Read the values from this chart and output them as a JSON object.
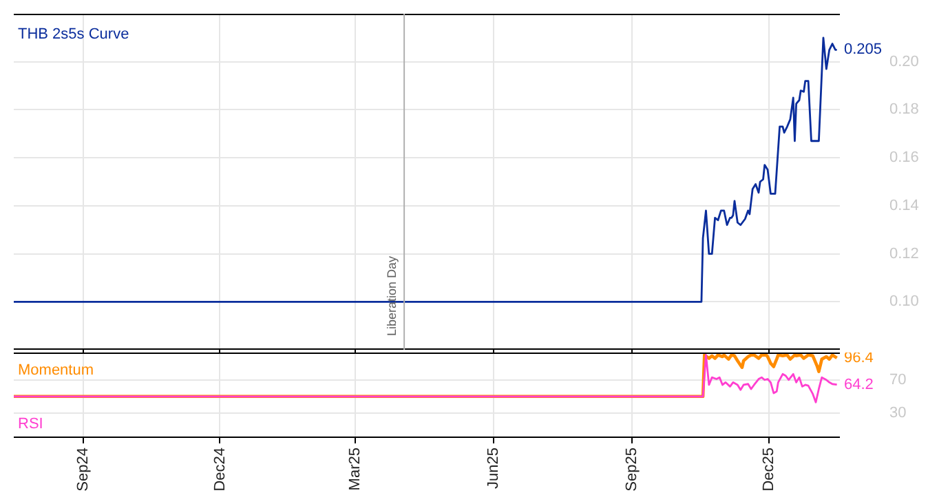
{
  "chart_data": [
    {
      "type": "line",
      "legend": "top left",
      "grid": true,
      "tick_labels": "y",
      "xlim": [
        "2024-07-17",
        "2026-01-17"
      ],
      "xticks": [
        {
          "value": "2024-09-01",
          "label": null
        },
        {
          "value": "2024-12-01",
          "label": null
        },
        {
          "value": "2025-03-01",
          "label": null
        },
        {
          "value": "2025-06-01",
          "label": null
        },
        {
          "value": "2025-09-01",
          "label": null
        },
        {
          "value": "2025-12-01",
          "label": null
        }
      ],
      "ylim": [
        0.08,
        0.22
      ],
      "yticks": [
        {
          "value": 0.1,
          "label": "0.10"
        },
        0.12,
        0.14,
        0.16,
        0.18,
        {
          "value": 0.2,
          "label": "0.20"
        }
      ],
      "ref_lines": [
        {
          "axis": "x",
          "value": "2025-04-02",
          "label": "Liberation Day",
          "color": "#b0b0b0"
        }
      ],
      "annotations": [
        {
          "text": "0.205",
          "x": "2026-01-15",
          "y": 0.205
        }
      ],
      "series": [
        {
          "name": "THB 2s5s Curve",
          "color": "#0a2d9c",
          "x": [
            "2024-07-17",
            "2025-10-17",
            "2025-10-18",
            "2025-10-20",
            "2025-10-22",
            "2025-10-24",
            "2025-10-26",
            "2025-10-28",
            "2025-10-30",
            "2025-11-01",
            "2025-11-03",
            "2025-11-05",
            "2025-11-06",
            "2025-11-07",
            "2025-11-08",
            "2025-11-10",
            "2025-11-12",
            "2025-11-15",
            "2025-11-17",
            "2025-11-18",
            "2025-11-20",
            "2025-11-22",
            "2025-11-24",
            "2025-11-25",
            "2025-11-27",
            "2025-11-28",
            "2025-11-30",
            "2025-12-02",
            "2025-12-05",
            "2025-12-08",
            "2025-12-10",
            "2025-12-11",
            "2025-12-13",
            "2025-12-15",
            "2025-12-17",
            "2025-12-18",
            "2025-12-19",
            "2025-12-21",
            "2025-12-22",
            "2025-12-24",
            "2025-12-25",
            "2025-12-27",
            "2025-12-29",
            "2026-01-03",
            "2026-01-06",
            "2026-01-08",
            "2026-01-10",
            "2026-01-12",
            "2026-01-14",
            "2026-01-15"
          ],
          "values": [
            0.1,
            0.1,
            0.1265,
            0.138,
            0.12,
            0.12,
            0.135,
            0.134,
            0.138,
            0.138,
            0.132,
            0.135,
            0.135,
            0.136,
            0.142,
            0.133,
            0.132,
            0.1345,
            0.138,
            0.1365,
            0.147,
            0.149,
            0.1455,
            0.15,
            0.151,
            0.157,
            0.155,
            0.145,
            0.145,
            0.173,
            0.173,
            0.1705,
            0.173,
            0.176,
            0.185,
            0.167,
            0.1825,
            0.184,
            0.188,
            0.1875,
            0.192,
            0.192,
            0.167,
            0.167,
            0.21,
            0.197,
            0.205,
            0.2075,
            0.205,
            0.205
          ]
        }
      ]
    },
    {
      "type": "line",
      "legend": "left",
      "grid": true,
      "xlim": [
        "2024-07-17",
        "2026-01-17"
      ],
      "xticks": [
        {
          "value": "2024-09-01",
          "label": "Sep24"
        },
        {
          "value": "2024-12-01",
          "label": "Dec24"
        },
        {
          "value": "2025-03-01",
          "label": "Mar25"
        },
        {
          "value": "2025-06-01",
          "label": "Jun25"
        },
        {
          "value": "2025-09-01",
          "label": "Sep25"
        },
        {
          "value": "2025-12-01",
          "label": "Dec25"
        }
      ],
      "ylim": [
        0,
        103
      ],
      "yticks": [
        30,
        70
      ],
      "annotations": [
        {
          "text": "96.4",
          "x": "2026-01-15",
          "y": 96.4
        },
        {
          "text": "64.2",
          "x": "2026-01-15",
          "y": 64.2
        }
      ],
      "series": [
        {
          "name": "Momentum",
          "color": "#ff8c00",
          "x": [
            "2024-07-17",
            "2025-10-18",
            "2025-10-19",
            "2025-10-22",
            "2025-10-24",
            "2025-10-26",
            "2025-10-28",
            "2025-10-31",
            "2025-11-01",
            "2025-11-04",
            "2025-11-06",
            "2025-11-08",
            "2025-11-10",
            "2025-11-13",
            "2025-11-14",
            "2025-11-17",
            "2025-11-19",
            "2025-11-21",
            "2025-11-24",
            "2025-11-26",
            "2025-11-29",
            "2025-11-30",
            "2025-12-02",
            "2025-12-04",
            "2025-12-06",
            "2025-12-07",
            "2025-12-10",
            "2025-12-13",
            "2025-12-15",
            "2025-12-18",
            "2025-12-19",
            "2025-12-22",
            "2025-12-24",
            "2025-12-27",
            "2025-12-30",
            "2026-01-02",
            "2026-01-03",
            "2026-01-05",
            "2026-01-08",
            "2026-01-10",
            "2026-01-12",
            "2026-01-15"
          ],
          "values": [
            50,
            50,
            100,
            96,
            99,
            96,
            100,
            98,
            100,
            95,
            100,
            99,
            93,
            85,
            93,
            98,
            100,
            100,
            96,
            100,
            100,
            98,
            90,
            86,
            95,
            100,
            99,
            100,
            95,
            100,
            99,
            100,
            96,
            100,
            99,
            86,
            80,
            95,
            98,
            95,
            100,
            96.4
          ]
        },
        {
          "name": "RSI",
          "color": "#ff3fd0",
          "x": [
            "2024-07-17",
            "2025-10-18",
            "2025-10-20",
            "2025-10-22",
            "2025-10-24",
            "2025-10-27",
            "2025-10-29",
            "2025-10-31",
            "2025-11-02",
            "2025-11-05",
            "2025-11-07",
            "2025-11-10",
            "2025-11-12",
            "2025-11-14",
            "2025-11-17",
            "2025-11-19",
            "2025-11-21",
            "2025-11-24",
            "2025-11-26",
            "2025-11-28",
            "2025-11-30",
            "2025-12-02",
            "2025-12-04",
            "2025-12-06",
            "2025-12-07",
            "2025-12-10",
            "2025-12-12",
            "2025-12-14",
            "2025-12-17",
            "2025-12-19",
            "2025-12-21",
            "2025-12-23",
            "2025-12-25",
            "2025-12-27",
            "2025-12-30",
            "2026-01-01",
            "2026-01-03",
            "2026-01-05",
            "2026-01-08",
            "2026-01-10",
            "2026-01-12",
            "2026-01-15"
          ],
          "values": [
            50,
            50,
            100,
            64,
            73,
            71,
            73,
            64,
            67,
            62,
            67,
            64,
            58,
            64,
            65,
            59,
            64,
            71,
            73,
            70,
            71,
            67,
            54,
            56,
            67,
            77,
            75,
            70,
            77,
            67,
            73,
            62,
            64,
            63,
            53,
            43,
            59,
            73,
            70,
            67,
            65,
            64.2
          ]
        }
      ]
    }
  ]
}
